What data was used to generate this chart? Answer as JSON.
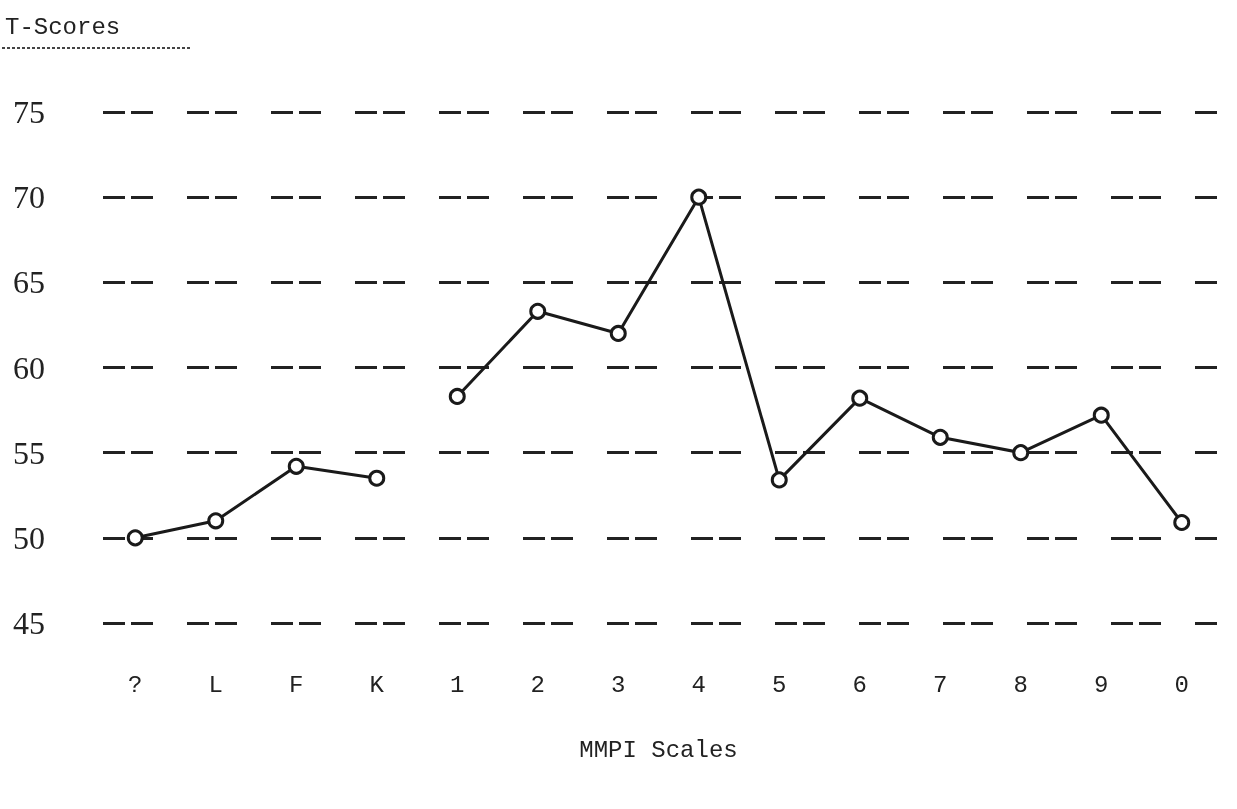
{
  "chart_data": {
    "type": "line",
    "ylabel": "T-Scores",
    "xlabel": "MMPI Scales",
    "categories": [
      "?",
      "L",
      "F",
      "K",
      "1",
      "2",
      "3",
      "4",
      "5",
      "6",
      "7",
      "8",
      "9",
      "0"
    ],
    "series": [
      {
        "color": "#1a1a1a",
        "values": [
          50,
          51,
          54.2,
          53.5,
          null,
          null,
          null,
          null,
          null,
          null,
          null,
          null,
          null,
          null
        ]
      },
      {
        "color": "#1a1a1a",
        "values": [
          null,
          null,
          null,
          null,
          58.3,
          63.3,
          62,
          70,
          53.4,
          58.2,
          55.9,
          55,
          57.2,
          50.9
        ]
      }
    ],
    "ylim": [
      45,
      75
    ],
    "yticks": [
      45,
      50,
      55,
      60,
      65,
      70,
      75
    ],
    "grid": "y",
    "marker": "circle",
    "line_style": "solid"
  }
}
